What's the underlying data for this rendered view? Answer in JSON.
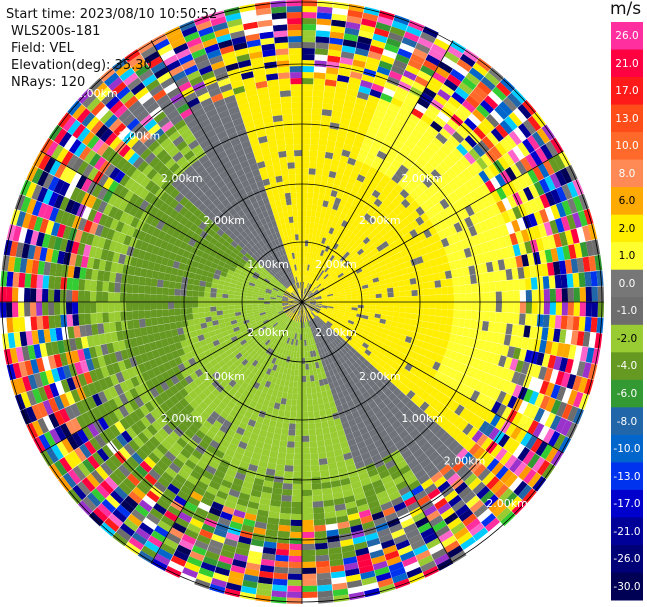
{
  "header": {
    "start_time": "Start time: 2023/08/10 10:50:52",
    "station": "WLS200s-181",
    "field": "Field: VEL",
    "elevation": "Elevation(deg): 35.30",
    "nrays": "NRays: 120"
  },
  "chart_data": {
    "type": "heatmap",
    "projection": "polar-ppi",
    "field": "VEL",
    "rays": 120,
    "range_ring_labels": [
      "1.00km",
      "2.00km",
      "2.00km",
      "2.00km",
      "2.00km",
      "2.00km",
      "2.00km"
    ],
    "spoke_count": 12,
    "colorbar": {
      "unit": "m/s",
      "ticks": [
        "26.0",
        "21.0",
        "17.0",
        "13.0",
        "10.0",
        "8.0",
        "6.0",
        "2.0",
        "1.0",
        "0.0",
        "-1.0",
        "-2.0",
        "-4.0",
        "-6.0",
        "-8.0",
        "-10.0",
        "-13.0",
        "-17.0",
        "-21.0",
        "-26.0",
        "-30.0"
      ],
      "colors": [
        "#ff2fa0",
        "#ff0040",
        "#ff1a1a",
        "#ff4d1a",
        "#ff6a2a",
        "#ff8a55",
        "#ffaa00",
        "#ffee00",
        "#ffff30",
        "#777777",
        "#6d6d6d",
        "#99cc33",
        "#669922",
        "#339933",
        "#2266aa",
        "#0066cc",
        "#0033ee",
        "#0000cc",
        "#000099",
        "#000077",
        "#000055"
      ]
    }
  }
}
